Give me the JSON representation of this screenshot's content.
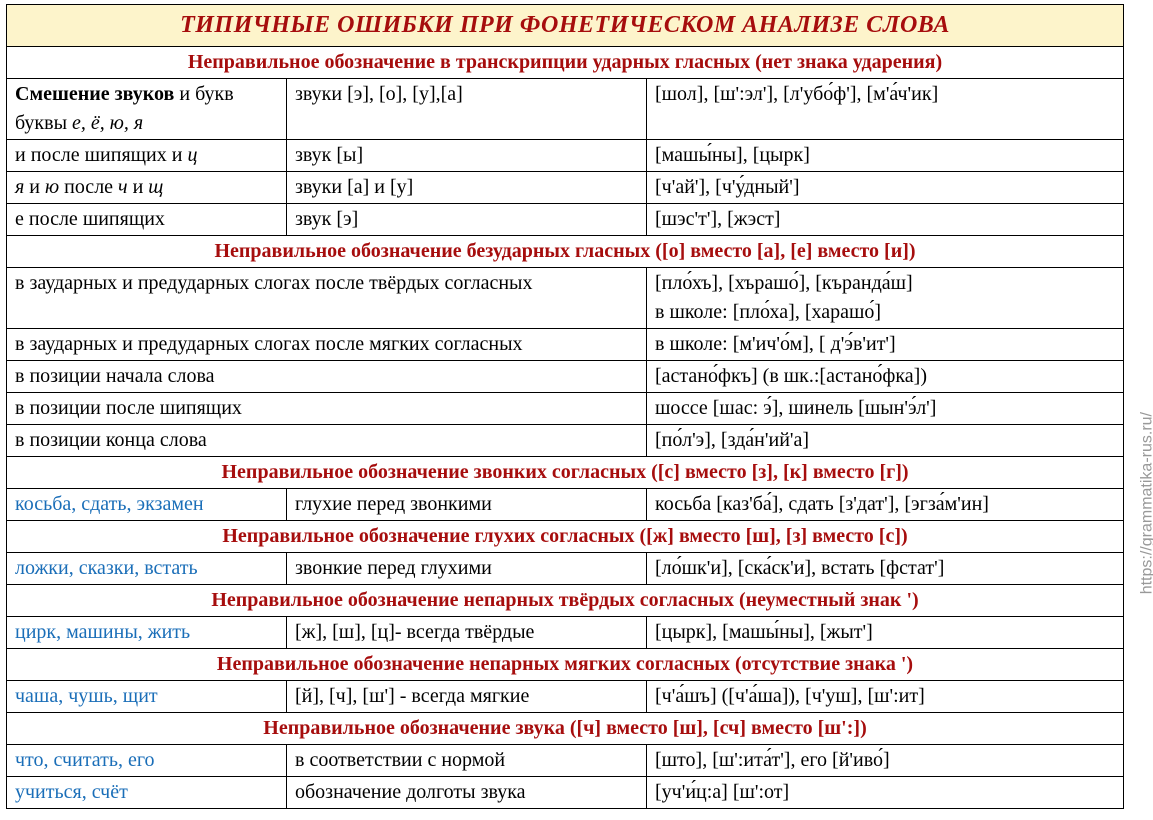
{
  "title": "ТИПИЧНЫЕ ОШИБКИ ПРИ ФОНЕТИЧЕСКОМ АНАЛИЗЕ СЛОВА",
  "watermark": "https://grammatika-rus.ru/",
  "colors": {
    "title_bg": "#fdf4cb",
    "header_text": "#a60d0d",
    "blue_text": "#1a6eb8",
    "border": "#000000"
  },
  "s1": {
    "header": "Неправильное обозначение в транскрипции ударных гласных (нет знака ударения)",
    "r1c1a": "Смешение звуков",
    "r1c1b": " и букв буквы ",
    "r1c1c": "е, ё, ю, я",
    "r1c2": "звуки [э], [о], [у],[а]",
    "r1c3": "[шол], [ш':эл'], [л'убо́ф'], [м'а́ч'ик]",
    "r2c1a": "и после шипящих и ",
    "r2c1b": "ц",
    "r2c2": "звук [ы]",
    "r2c3": "[машы́ны], [цырк]",
    "r3c1a": "я",
    "r3c1b": " и ",
    "r3c1c": "ю",
    "r3c1d": "  после ",
    "r3c1e": "ч",
    "r3c1f": " и ",
    "r3c1g": "щ",
    "r3c2": "звуки [а] и [у]",
    "r3c3": "[ч'ай'], [ч'у́дный']",
    "r4c1": "е после шипящих",
    "r4c2": "звук [э]",
    "r4c3": "[шэс'т'], [жэст]"
  },
  "s2": {
    "header": "Неправильное обозначение безударных гласных ([о] вместо [а], [е] вместо [и])",
    "r1c1": "в заударных и предударных слогах после твёрдых согласных",
    "r1c3a": "[пло́хъ], [хърашо́], [къранда́ш]",
    "r1c3b": " в школе: [пло́ха], [харашо́]",
    "r2c1": "в заударных и предударных слогах после мягких согласных",
    "r2c3": "в школе: [м'ич'о́м], [ д'э́в'ит']",
    "r3c1": "в позиции начала слова",
    "r3c3": "[астано́фкъ] (в шк.:[астано́фка])",
    "r4c1": "в позиции после шипящих",
    "r4c3": "шоссе [шас: э́], шинель [шын'э́л']",
    "r5c1": "в позиции конца слова",
    "r5c3": "[по́л'э], [зда́н'ий'а]"
  },
  "s3": {
    "header": "Неправильное обозначение звонких согласных ([с] вместо [з], [к] вместо [г])",
    "r1c1": "косьба, сдать, экзамен",
    "r1c2": "глухие перед звонкими",
    "r1c3": "косьба [каз'ба́], сдать [з'дат'], [эгза́м'ин]"
  },
  "s4": {
    "header": "Неправильное обозначение глухих согласных ([ж] вместо [ш], [з] вместо [с])",
    "r1c1": "ложки, сказки, встать",
    "r1c2": "звонкие перед глухими",
    "r1c3": "[ло́шк'и], [ска́ск'и], встать [фстат']"
  },
  "s5": {
    "header": "Неправильное обозначение непарных твёрдых согласных (неуместный знак ')",
    "r1c1": "цирк, машины, жить",
    "r1c2": "[ж], [ш], [ц]- всегда твёрдые",
    "r1c3": "[цырк], [машы́ны], [жыт']"
  },
  "s6": {
    "header": "Неправильное обозначение непарных мягких согласных (отсутствие знака ')",
    "r1c1": "чаша, чушь, щит",
    "r1c2": "[й], [ч], [ш'] - всегда  мягкие",
    "r1c3": "[ч'а́шъ] ([ч'а́ша]), [ч'уш], [ш':ит]"
  },
  "s7": {
    "header": "Неправильное обозначение звука ([ч] вместо [ш], [сч] вместо [ш':])",
    "r1c1": "что, считать, его",
    "r1c2": "в соответствии с нормой",
    "r1c3": "[што], [ш':ита́т'], его [й'иво́]",
    "r2c1": "учиться, счёт",
    "r2c2": "обозначение долготы звука",
    "r2c3": "[уч'и́ц:а] [ш':от]"
  }
}
